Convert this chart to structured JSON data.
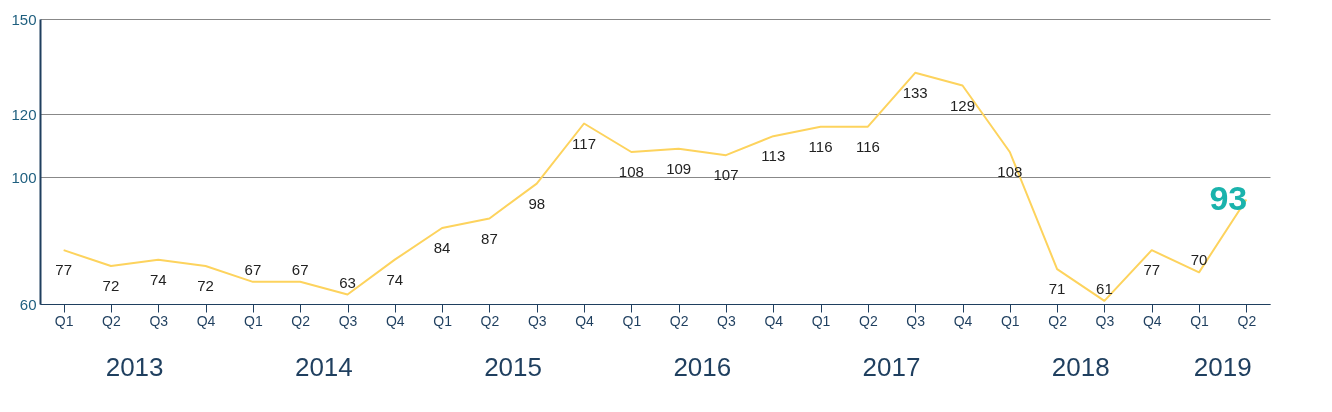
{
  "chart_data": {
    "type": "line",
    "categories": [
      "Q1",
      "Q2",
      "Q3",
      "Q4",
      "Q1",
      "Q2",
      "Q3",
      "Q4",
      "Q1",
      "Q2",
      "Q3",
      "Q4",
      "Q1",
      "Q2",
      "Q3",
      "Q4",
      "Q1",
      "Q2",
      "Q3",
      "Q4",
      "Q1",
      "Q2",
      "Q3",
      "Q4",
      "Q1",
      "Q2"
    ],
    "series": [
      {
        "color": "#fdd35d",
        "values": [
          77,
          72,
          74,
          72,
          67,
          67,
          63,
          74,
          84,
          87,
          98,
          117,
          108,
          109,
          107,
          113,
          116,
          116,
          133,
          129,
          108,
          71,
          61,
          77,
          70,
          93
        ]
      }
    ],
    "ylim": [
      60,
      150
    ],
    "yticks": [
      60,
      100,
      120,
      150
    ],
    "grid": "y",
    "data_labels": true,
    "marker": "none",
    "line_style": "solid",
    "annotations": [
      "2013",
      "2014",
      "2015",
      "2016",
      "2017",
      "2018",
      "2019"
    ]
  }
}
